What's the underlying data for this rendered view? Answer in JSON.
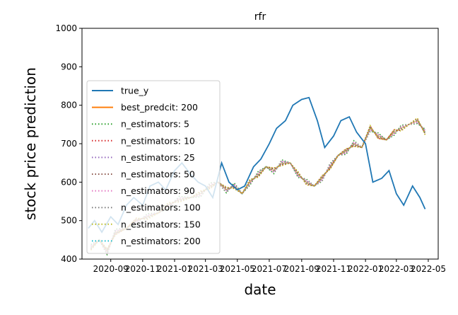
{
  "chart_data": {
    "type": "line",
    "title": "rfr",
    "xlabel": "date",
    "ylabel": "stock price prediction",
    "xlim": [
      "2020-07-08",
      "2022-05-20"
    ],
    "ylim": [
      400,
      1000
    ],
    "y_ticks": [
      400,
      500,
      600,
      700,
      800,
      900,
      1000
    ],
    "x_ticks": [
      {
        "date": "2020-09-01",
        "label": "2020-09"
      },
      {
        "date": "2020-11-01",
        "label": "2020-11"
      },
      {
        "date": "2021-01-01",
        "label": "2021-01"
      },
      {
        "date": "2021-03-01",
        "label": "2021-03"
      },
      {
        "date": "2021-05-01",
        "label": "2021-05"
      },
      {
        "date": "2021-07-01",
        "label": "2021-07"
      },
      {
        "date": "2021-09-01",
        "label": "2021-09"
      },
      {
        "date": "2021-11-01",
        "label": "2021-11"
      },
      {
        "date": "2022-01-01",
        "label": "2022-01"
      },
      {
        "date": "2022-03-01",
        "label": "2022-03"
      },
      {
        "date": "2022-05-01",
        "label": "2022-05"
      }
    ],
    "grid": false,
    "legend_position": "left",
    "legend": [
      {
        "name": "true_y",
        "color": "#1f77b4",
        "style": "solid"
      },
      {
        "name": "best_predcit: 200",
        "color": "#ff7f0e",
        "style": "solid"
      },
      {
        "name": "n_estimators: 5",
        "color": "#2ca02c",
        "style": "dotted"
      },
      {
        "name": "n_estimators: 10",
        "color": "#d62728",
        "style": "dotted"
      },
      {
        "name": "n_estimators: 25",
        "color": "#9467bd",
        "style": "dotted"
      },
      {
        "name": "n_estimators: 50",
        "color": "#8c564b",
        "style": "dotted"
      },
      {
        "name": "n_estimators: 90",
        "color": "#e377c2",
        "style": "dotted"
      },
      {
        "name": "n_estimators: 100",
        "color": "#7f7f7f",
        "style": "dotted"
      },
      {
        "name": "n_estimators: 150",
        "color": "#bcbd22",
        "style": "dotted"
      },
      {
        "name": "n_estimators: 200",
        "color": "#17becf",
        "style": "dotted"
      }
    ],
    "true_y": {
      "x": [
        "2020-07-20",
        "2020-08-01",
        "2020-08-15",
        "2020-09-01",
        "2020-09-15",
        "2020-10-01",
        "2020-10-15",
        "2020-11-01",
        "2020-11-15",
        "2020-12-01",
        "2020-12-15",
        "2021-01-01",
        "2021-01-15",
        "2021-02-01",
        "2021-02-15",
        "2021-03-01",
        "2021-03-15",
        "2021-04-01",
        "2021-04-15",
        "2021-05-01",
        "2021-05-15",
        "2021-06-01",
        "2021-06-15",
        "2021-07-01",
        "2021-07-15",
        "2021-08-01",
        "2021-08-15",
        "2021-09-01",
        "2021-09-15",
        "2021-10-01",
        "2021-10-15",
        "2021-11-01",
        "2021-11-15",
        "2021-12-01",
        "2021-12-15",
        "2022-01-01",
        "2022-01-15",
        "2022-02-01",
        "2022-02-15",
        "2022-03-01",
        "2022-03-15",
        "2022-04-01",
        "2022-04-15",
        "2022-04-25"
      ],
      "y": [
        480,
        500,
        470,
        510,
        490,
        540,
        560,
        540,
        590,
        600,
        580,
        630,
        650,
        620,
        600,
        590,
        560,
        650,
        600,
        580,
        590,
        640,
        660,
        700,
        740,
        760,
        800,
        815,
        820,
        760,
        690,
        720,
        760,
        770,
        730,
        700,
        600,
        610,
        630,
        570,
        540,
        590,
        560,
        530
      ]
    },
    "predictions": {
      "x": [
        "2020-07-25",
        "2020-08-10",
        "2020-08-25",
        "2020-09-10",
        "2020-10-01",
        "2020-10-20",
        "2020-11-10",
        "2020-12-01",
        "2020-12-20",
        "2021-01-10",
        "2021-02-01",
        "2021-02-20",
        "2021-03-10",
        "2021-03-25",
        "2021-04-10",
        "2021-04-25",
        "2021-05-10",
        "2021-05-25",
        "2021-06-10",
        "2021-06-25",
        "2021-07-10",
        "2021-07-25",
        "2021-08-10",
        "2021-08-25",
        "2021-09-10",
        "2021-09-25",
        "2021-10-10",
        "2021-10-25",
        "2021-11-10",
        "2021-11-25",
        "2021-12-10",
        "2021-12-25",
        "2022-01-10",
        "2022-01-25",
        "2022-02-10",
        "2022-02-25",
        "2022-03-10",
        "2022-03-25",
        "2022-04-10",
        "2022-04-25"
      ],
      "y": [
        430,
        450,
        420,
        470,
        480,
        500,
        510,
        520,
        540,
        555,
        560,
        570,
        590,
        600,
        580,
        590,
        570,
        600,
        620,
        640,
        630,
        650,
        650,
        620,
        600,
        590,
        610,
        640,
        670,
        680,
        700,
        690,
        740,
        720,
        710,
        730,
        740,
        750,
        760,
        730
      ]
    }
  }
}
